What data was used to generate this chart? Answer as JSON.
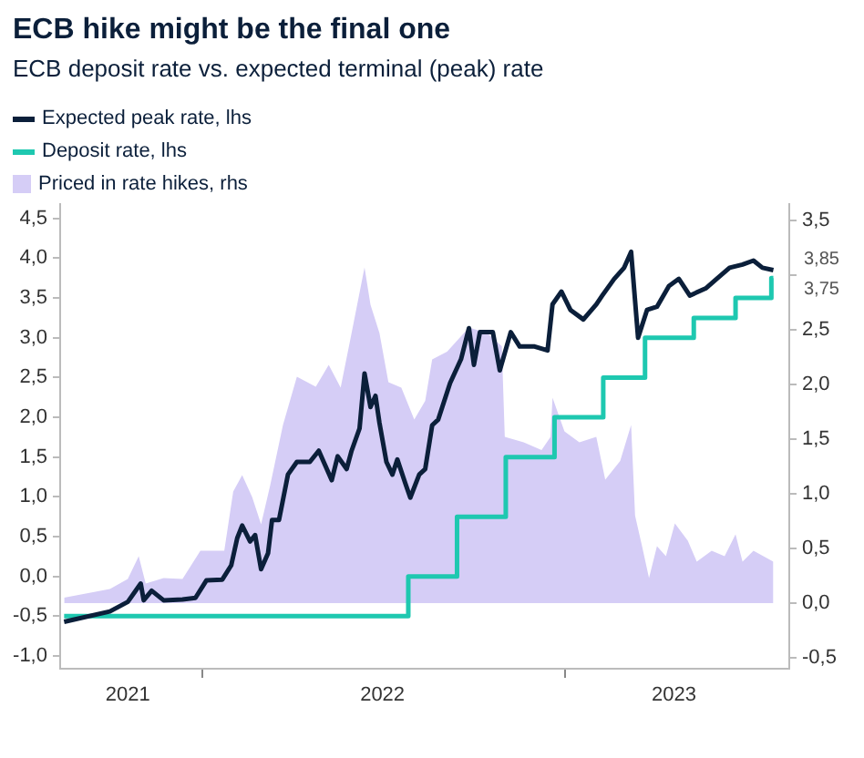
{
  "chart_data": {
    "type": "line",
    "title": "ECB hike might be the final one",
    "subtitle": "ECB deposit rate vs. expected terminal (peak) rate",
    "legend": "top left",
    "marker": "none",
    "grid": false,
    "xlim": [
      "2021-08-11",
      "2023-08-14"
    ],
    "xticks": [
      {
        "value": "2021-10-18",
        "label": "2021"
      },
      {
        "value": "2022-01-01",
        "label": null
      },
      {
        "value": "2022-07-01",
        "label": "2022"
      },
      {
        "value": "2023-01-01",
        "label": null
      },
      {
        "value": "2023-04-20",
        "label": "2023"
      }
    ],
    "ylim": [
      -1.16,
      4.68
    ],
    "yticks": [
      {
        "value": -1,
        "label": "-1,0"
      },
      {
        "value": -0.5,
        "label": "-0,5"
      },
      {
        "value": 0,
        "label": "0,0"
      },
      {
        "value": 0.5,
        "label": "0,5"
      },
      {
        "value": 1,
        "label": "1,0"
      },
      {
        "value": 1.5,
        "label": "1,5"
      },
      {
        "value": 2,
        "label": "2,0"
      },
      {
        "value": 2.5,
        "label": "2,5"
      },
      {
        "value": 3,
        "label": "3,0"
      },
      {
        "value": 3.5,
        "label": "3,5"
      },
      {
        "value": 4,
        "label": "4,0"
      },
      {
        "value": 4.5,
        "label": "4,5"
      }
    ],
    "y2lim": [
      -0.6,
      3.65
    ],
    "y2ticks": [
      {
        "value": -0.5,
        "label": "-0,5"
      },
      {
        "value": 0,
        "label": "0,0"
      },
      {
        "value": 0.5,
        "label": "0,5"
      },
      {
        "value": 1,
        "label": "1,0"
      },
      {
        "value": 1.5,
        "label": "1,5"
      },
      {
        "value": 2,
        "label": "2,0"
      },
      {
        "value": 2.5,
        "label": "2,5"
      },
      {
        "value": 3,
        "label": null
      },
      {
        "value": 3.5,
        "label": "3,5"
      }
    ],
    "annotations": [
      {
        "text": "3,85",
        "x": "2023-07-29",
        "y": 3.85
      },
      {
        "text": "3,75",
        "x": "2023-07-29",
        "y": 3.75
      }
    ],
    "series": [
      {
        "name": "Expected peak rate, lhs",
        "type": "line",
        "color": "#0b1f3a",
        "x": [
          "2021-08-15",
          "2021-09-30",
          "2021-10-18",
          "2021-10-31",
          "2021-11-03",
          "2021-11-11",
          "2021-11-23",
          "2021-12-12",
          "2021-12-25",
          "2022-01-05",
          "2022-01-21",
          "2022-01-30",
          "2022-02-05",
          "2022-02-10",
          "2022-02-18",
          "2022-02-23",
          "2022-03-01",
          "2022-03-08",
          "2022-03-12",
          "2022-03-19",
          "2022-03-28",
          "2022-04-06",
          "2022-04-19",
          "2022-04-28",
          "2022-05-11",
          "2022-05-17",
          "2022-05-26",
          "2022-05-31",
          "2022-06-08",
          "2022-06-13",
          "2022-06-19",
          "2022-06-24",
          "2022-06-28",
          "2022-07-05",
          "2022-07-11",
          "2022-07-16",
          "2022-07-24",
          "2022-07-29",
          "2022-08-07",
          "2022-08-13",
          "2022-08-20",
          "2022-08-26",
          "2022-09-07",
          "2022-09-18",
          "2022-09-26",
          "2022-10-01",
          "2022-10-07",
          "2022-10-20",
          "2022-10-27",
          "2022-11-07",
          "2022-11-16",
          "2022-12-01",
          "2022-12-14",
          "2022-12-19",
          "2022-12-28",
          "2023-01-06",
          "2023-01-19",
          "2023-02-01",
          "2023-02-07",
          "2023-02-19",
          "2023-03-01",
          "2023-03-08",
          "2023-03-15",
          "2023-03-24",
          "2023-04-03",
          "2023-04-15",
          "2023-04-25",
          "2023-05-06",
          "2023-05-22",
          "2023-06-02",
          "2023-06-15",
          "2023-06-28",
          "2023-07-09",
          "2023-07-18",
          "2023-07-29"
        ],
        "values": [
          -0.57,
          -0.44,
          -0.32,
          -0.09,
          -0.3,
          -0.18,
          -0.3,
          -0.29,
          -0.27,
          -0.05,
          -0.04,
          0.14,
          0.48,
          0.64,
          0.44,
          0.52,
          0.09,
          0.29,
          0.71,
          0.71,
          1.28,
          1.44,
          1.44,
          1.58,
          1.21,
          1.51,
          1.35,
          1.58,
          1.86,
          2.55,
          2.13,
          2.27,
          1.93,
          1.44,
          1.28,
          1.47,
          1.17,
          0.99,
          1.28,
          1.35,
          1.9,
          1.97,
          2.43,
          2.73,
          3.12,
          2.66,
          3.07,
          3.07,
          2.59,
          3.07,
          2.89,
          2.89,
          2.84,
          3.42,
          3.58,
          3.35,
          3.23,
          3.42,
          3.53,
          3.74,
          3.88,
          4.08,
          3.0,
          3.35,
          3.39,
          3.65,
          3.74,
          3.53,
          3.62,
          3.74,
          3.88,
          3.92,
          3.97,
          3.88,
          3.85
        ]
      },
      {
        "name": "Deposit rate, lhs",
        "type": "step",
        "color": "#1ec8b0",
        "x": [
          "2021-08-15",
          "2022-07-27",
          "2022-09-14",
          "2022-11-02",
          "2022-12-21",
          "2023-02-08",
          "2023-03-22",
          "2023-05-10",
          "2023-06-21",
          "2023-07-27",
          "2023-07-29"
        ],
        "values": [
          -0.5,
          0,
          0.75,
          1.5,
          2.0,
          2.5,
          3.0,
          3.25,
          3.5,
          3.75,
          3.75
        ]
      },
      {
        "name": "Priced in rate hikes, rhs",
        "type": "area",
        "axis": "y2",
        "color": "#d5cdf6",
        "x": [
          "2021-08-15",
          "2021-09-30",
          "2021-10-18",
          "2021-10-29",
          "2021-11-05",
          "2021-11-23",
          "2021-12-12",
          "2021-12-30",
          "2022-01-23",
          "2022-02-01",
          "2022-02-10",
          "2022-02-20",
          "2022-03-01",
          "2022-03-10",
          "2022-03-23",
          "2022-04-06",
          "2022-04-25",
          "2022-05-08",
          "2022-05-20",
          "2022-05-31",
          "2022-06-13",
          "2022-06-19",
          "2022-06-28",
          "2022-07-07",
          "2022-07-20",
          "2022-08-02",
          "2022-08-13",
          "2022-08-20",
          "2022-09-04",
          "2022-09-26",
          "2022-10-14",
          "2022-10-29",
          "2022-11-01",
          "2022-11-20",
          "2022-12-08",
          "2022-12-17",
          "2022-12-19",
          "2022-12-31",
          "2023-01-15",
          "2023-02-01",
          "2023-02-10",
          "2023-02-25",
          "2023-03-08",
          "2023-03-12",
          "2023-03-19",
          "2023-03-26",
          "2023-04-03",
          "2023-04-12",
          "2023-04-21",
          "2023-05-04",
          "2023-05-13",
          "2023-05-28",
          "2023-06-10",
          "2023-06-21",
          "2023-06-28",
          "2023-07-09",
          "2023-07-29"
        ],
        "values": [
          0.05,
          0.13,
          0.22,
          0.43,
          0.18,
          0.23,
          0.22,
          0.48,
          0.48,
          1.02,
          1.17,
          0.97,
          0.72,
          1.07,
          1.63,
          2.07,
          1.98,
          2.18,
          1.97,
          2.47,
          3.07,
          2.73,
          2.47,
          2.02,
          1.97,
          1.68,
          1.85,
          2.23,
          2.3,
          2.52,
          2.47,
          2.35,
          1.52,
          1.47,
          1.4,
          1.52,
          1.88,
          1.57,
          1.47,
          1.52,
          1.13,
          1.3,
          1.63,
          0.8,
          0.52,
          0.23,
          0.52,
          0.43,
          0.73,
          0.57,
          0.38,
          0.48,
          0.43,
          0.63,
          0.38,
          0.48,
          0.38
        ]
      }
    ]
  }
}
